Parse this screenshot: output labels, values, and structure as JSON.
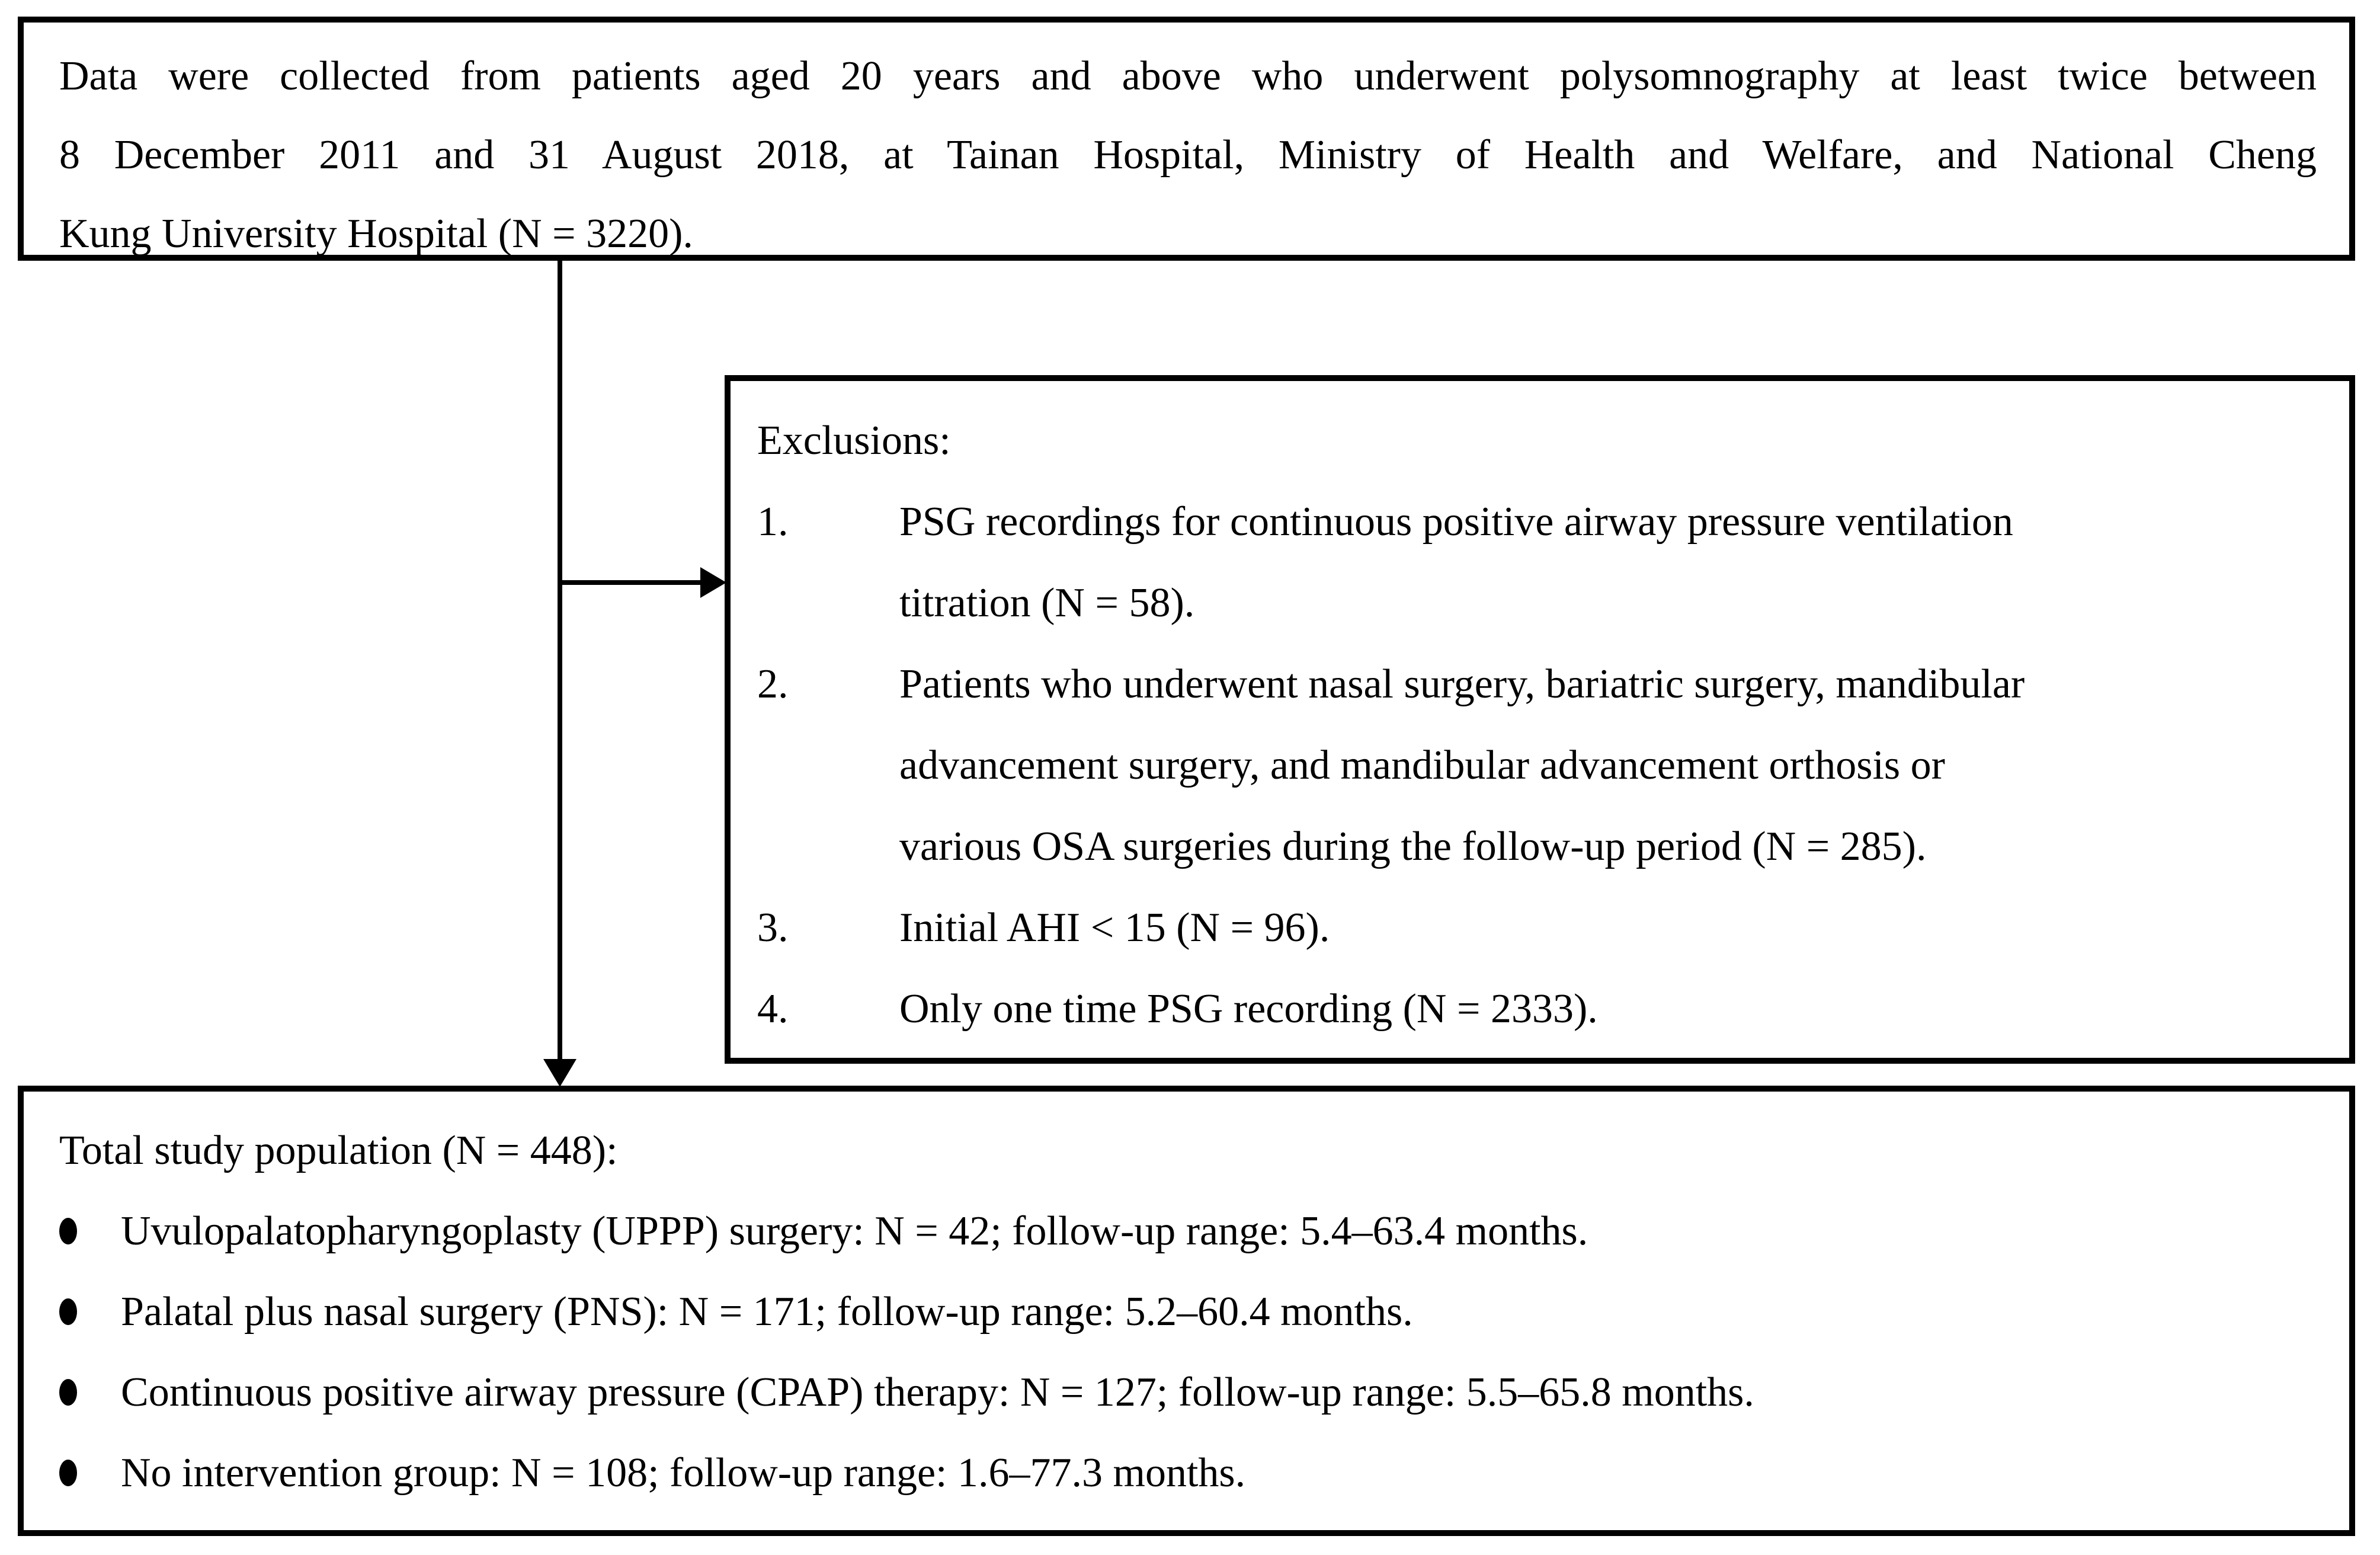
{
  "colors": {
    "background": "#ffffff",
    "border": "#000000",
    "text": "#000000"
  },
  "top_box": {
    "lines": [
      "Data were collected from patients aged 20 years and above who underwent polysomnography at least twice between",
      "8 December 2011 and 31 August 2018, at Tainan Hospital, Ministry of Health and Welfare, and National Cheng",
      "Kung University Hospital (N = 3220)."
    ]
  },
  "exclusions_box": {
    "title": "Exclusions:",
    "items": [
      {
        "number": "1.",
        "lines": [
          "PSG recordings for continuous positive airway pressure ventilation",
          "titration (N = 58)."
        ]
      },
      {
        "number": "2.",
        "lines": [
          "Patients who underwent nasal surgery, bariatric surgery, mandibular",
          "advancement surgery, and mandibular advancement orthosis or",
          "various OSA surgeries during the follow-up period (N = 285)."
        ]
      },
      {
        "number": "3.",
        "lines": [
          "Initial AHI < 15 (N = 96)."
        ]
      },
      {
        "number": "4.",
        "lines": [
          "Only one time PSG recording (N = 2333)."
        ]
      }
    ]
  },
  "bottom_box": {
    "title": "Total study population (N = 448):",
    "bullets": [
      "Uvulopalatopharyngoplasty (UPPP) surgery: N = 42; follow-up range: 5.4–63.4 months.",
      "Palatal plus nasal surgery (PNS): N = 171; follow-up range: 5.2–60.4 months.",
      "Continuous positive airway pressure (CPAP) therapy: N = 127; follow-up range: 5.5–65.8 months.",
      "No intervention group: N = 108; follow-up range: 1.6–77.3 months."
    ]
  }
}
